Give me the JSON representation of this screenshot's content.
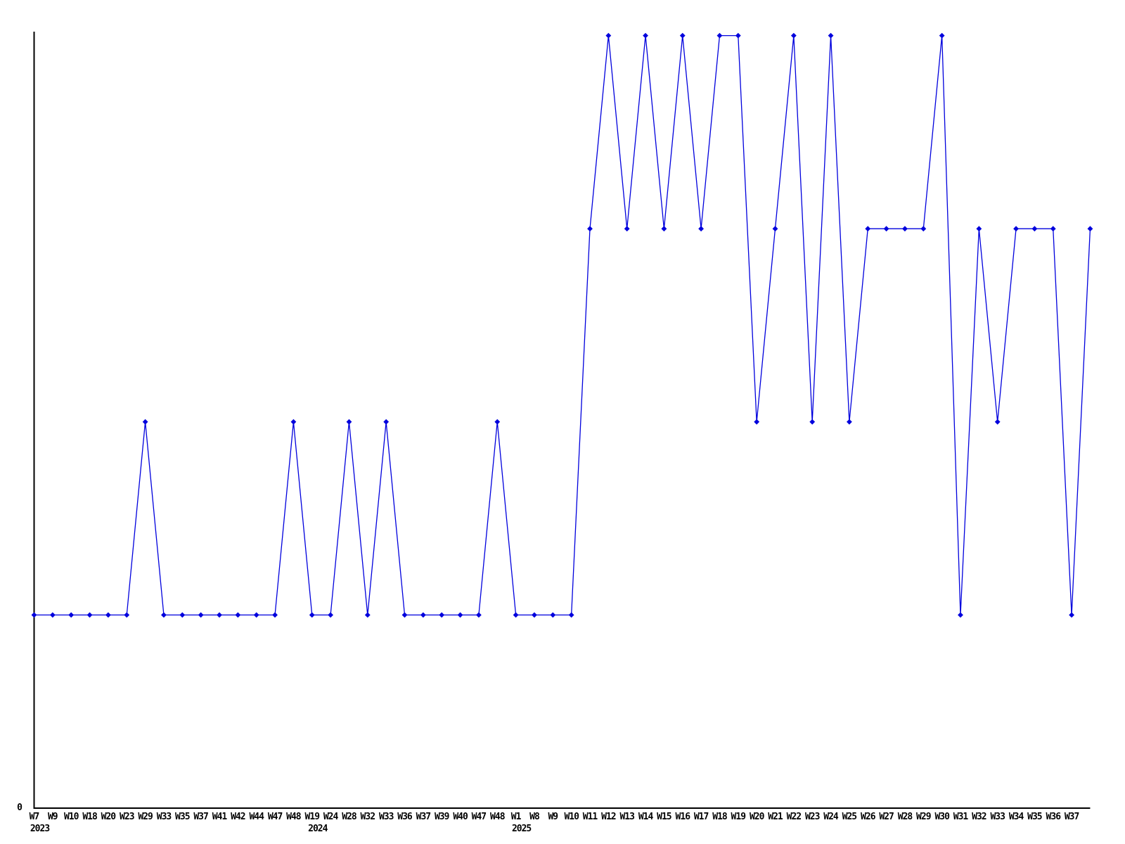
{
  "chart_data": {
    "type": "line",
    "title": "",
    "legend": "none",
    "grid": false,
    "x_axis": {
      "tick_labels": [
        "W7",
        "W9",
        "W10",
        "W18",
        "W20",
        "W23",
        "W29",
        "W33",
        "W35",
        "W37",
        "W41",
        "W42",
        "W44",
        "W47",
        "W48",
        "W19",
        "W24",
        "W28",
        "W32",
        "W33",
        "W36",
        "W37",
        "W39",
        "W40",
        "W47",
        "W48",
        "W1",
        "W8",
        "W9",
        "W10",
        "W11",
        "W12",
        "W13",
        "W14",
        "W15",
        "W16",
        "W17",
        "W18",
        "W19",
        "W20",
        "W21",
        "W22",
        "W23",
        "W24",
        "W25",
        "W26",
        "W27",
        "W28",
        "W29",
        "W30",
        "W31",
        "W32",
        "W33",
        "W34",
        "W35",
        "W36",
        "W37",
        ""
      ],
      "years": [
        {
          "label": "2023",
          "start_index": 0
        },
        {
          "label": "2024",
          "start_index": 15
        },
        {
          "label": "2025",
          "start_index": 26
        }
      ]
    },
    "y_axis": {
      "zero_label": "0",
      "min": 0,
      "max": 4,
      "visible_ticks": [
        "0"
      ]
    },
    "series": [
      {
        "name": "",
        "color": "#0000dd",
        "marker": "diamond",
        "values": [
          1,
          1,
          1,
          1,
          1,
          1,
          2,
          1,
          1,
          1,
          1,
          1,
          1,
          1,
          2,
          1,
          1,
          2,
          1,
          2,
          1,
          1,
          1,
          1,
          1,
          2,
          1,
          1,
          1,
          1,
          3,
          4,
          3,
          4,
          3,
          4,
          3,
          4,
          4,
          2,
          3,
          4,
          2,
          4,
          2,
          3,
          3,
          3,
          3,
          4,
          1,
          3,
          2,
          3,
          3,
          3,
          1,
          3
        ]
      }
    ]
  },
  "colors": {
    "line": "#0000dd",
    "axis": "#000000",
    "text": "#000000",
    "background": "#ffffff"
  }
}
